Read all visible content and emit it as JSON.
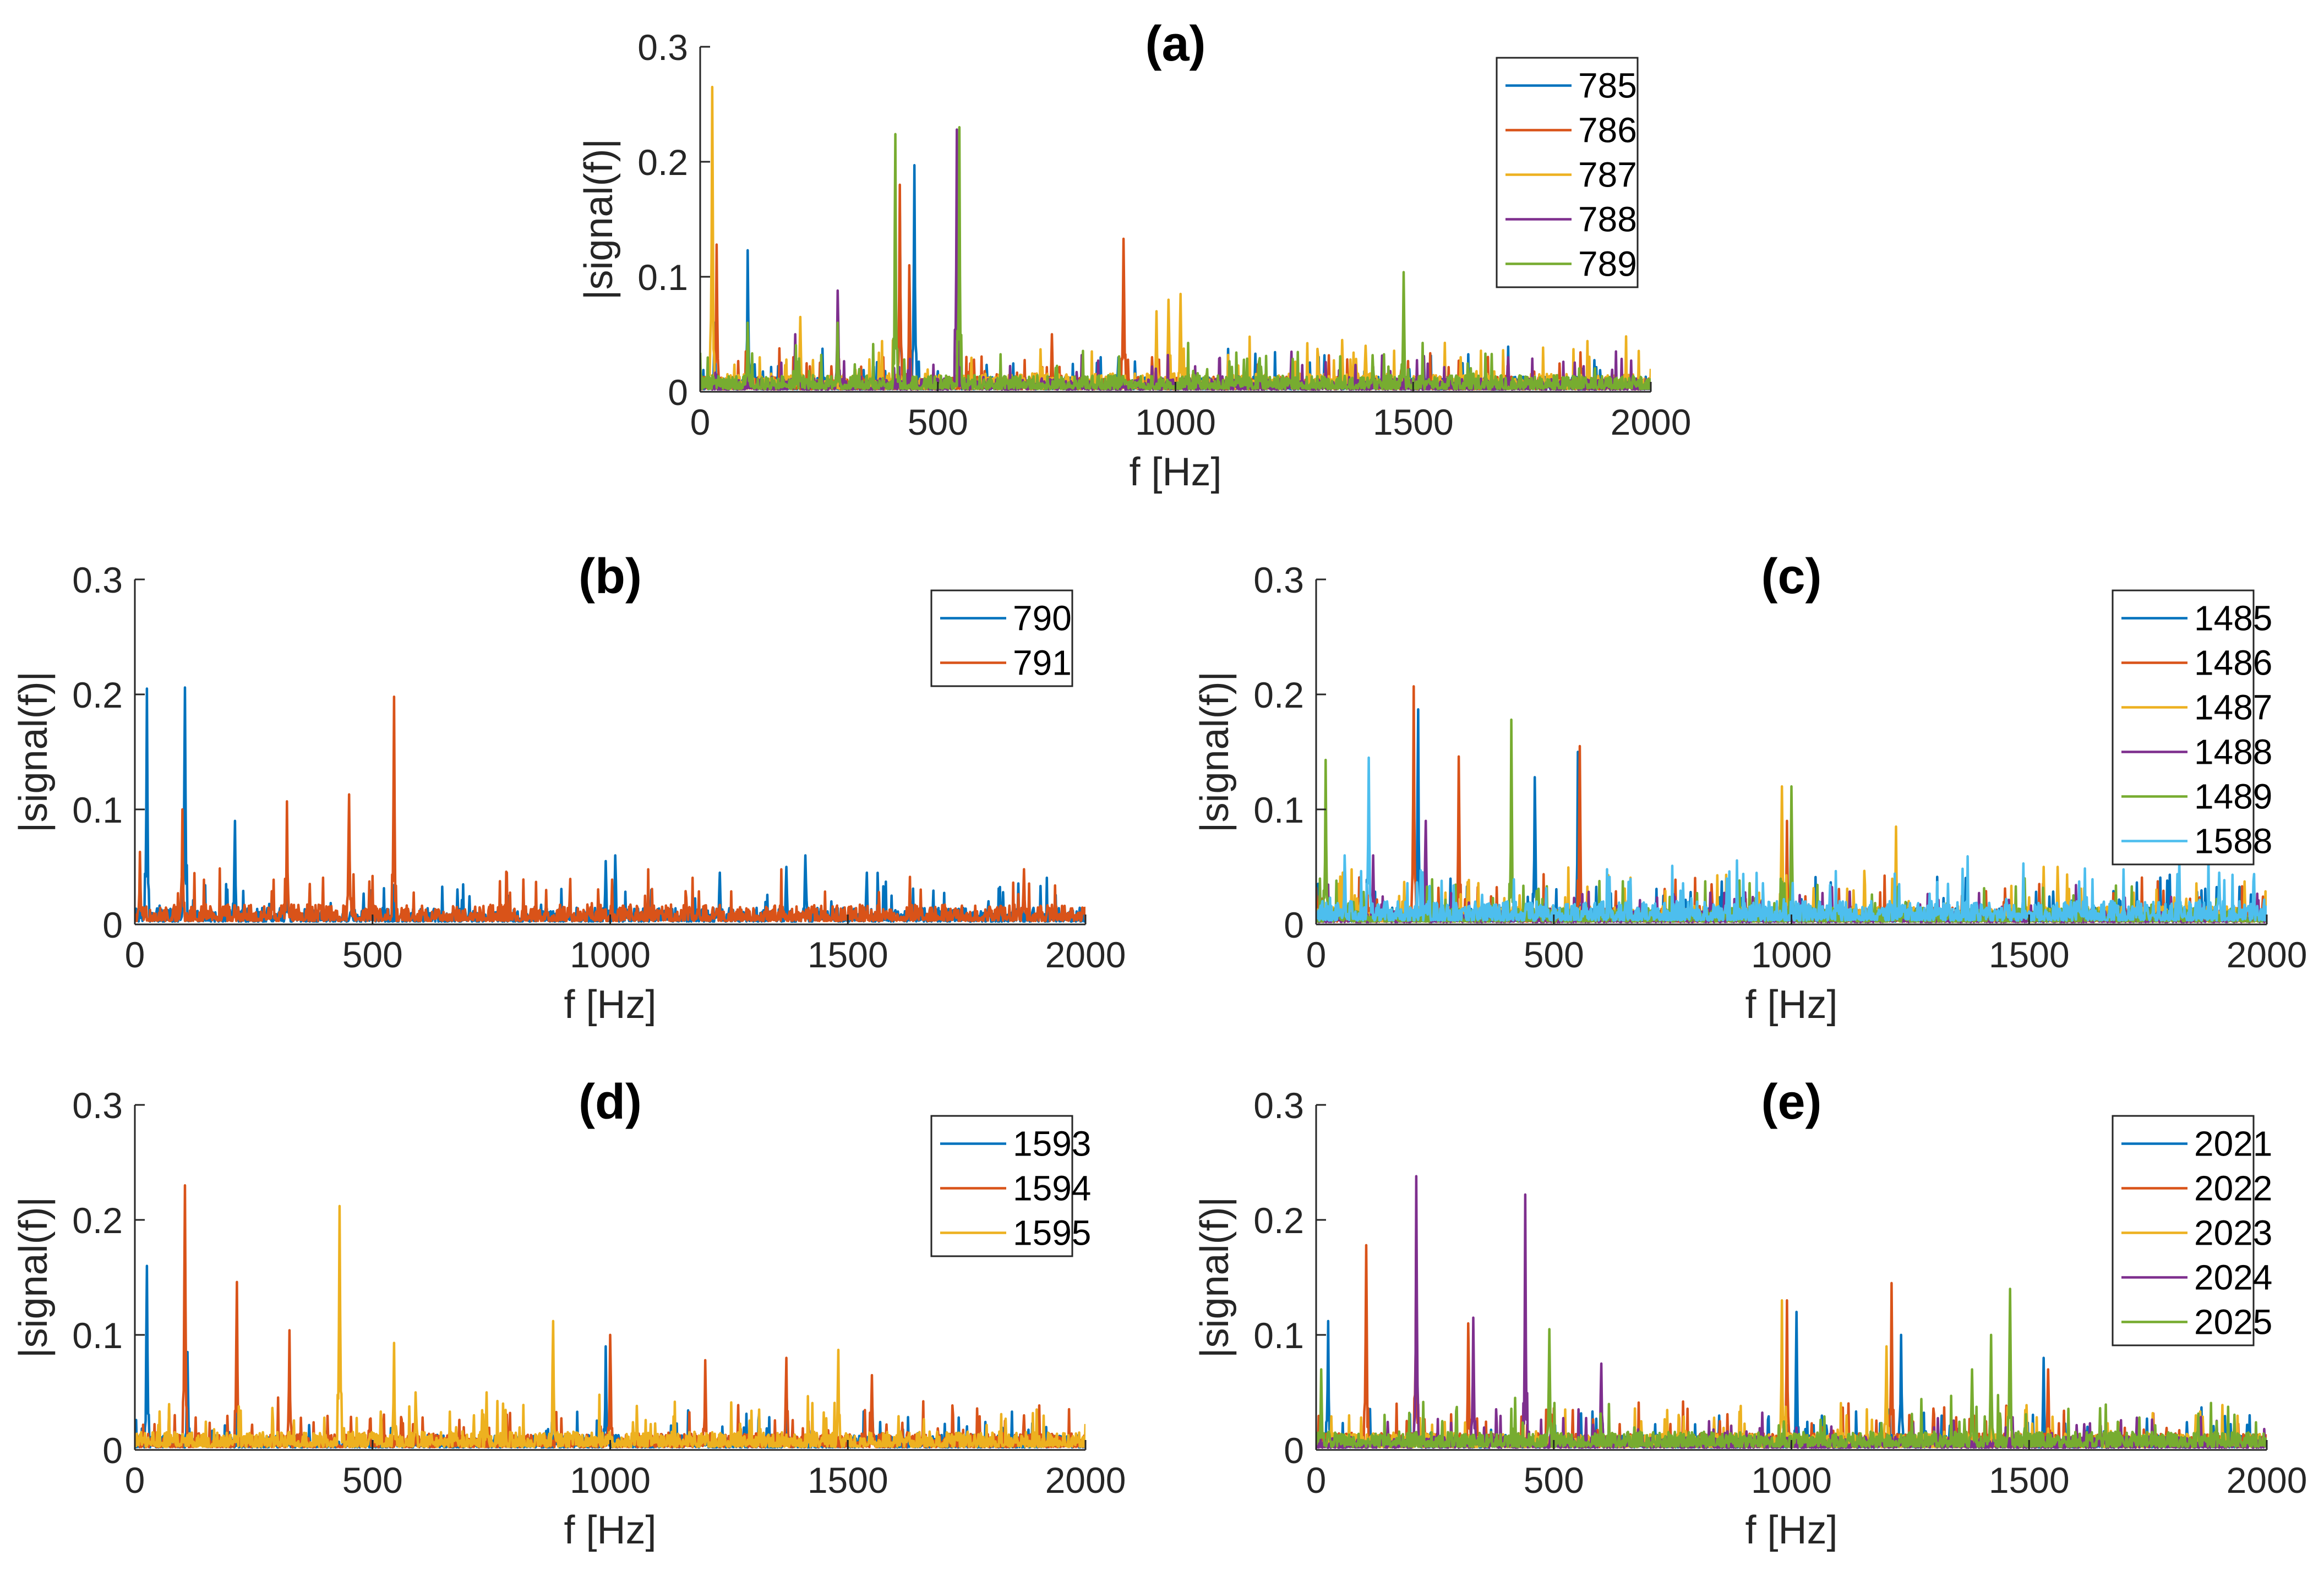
{
  "chart_data": [
    {
      "id": "a",
      "type": "line",
      "title": "(a)",
      "xlabel": "f [Hz]",
      "ylabel": "|signal(f)|",
      "xlim": [
        0,
        2000
      ],
      "ylim": [
        0,
        0.3
      ],
      "xticks": [
        "0",
        "500",
        "1000",
        "1500",
        "2000"
      ],
      "yticks": [
        "0",
        "0.1",
        "0.2",
        "0.3"
      ],
      "legend_position": "top-right",
      "series": [
        {
          "name": "785",
          "color": "#0072BD",
          "noise": 0.009,
          "peaks": [
            [
              100,
              0.123
            ],
            [
              450,
              0.197
            ],
            [
              420,
              0.16
            ],
            [
              30,
              0.06
            ],
            [
              880,
              0.03
            ]
          ]
        },
        {
          "name": "786",
          "color": "#D95319",
          "noise": 0.009,
          "peaks": [
            [
              35,
              0.128
            ],
            [
              420,
              0.18
            ],
            [
              440,
              0.11
            ],
            [
              890,
              0.133
            ],
            [
              740,
              0.05
            ],
            [
              950,
              0.03
            ]
          ]
        },
        {
          "name": "787",
          "color": "#EDB120",
          "noise": 0.011,
          "peaks": [
            [
              25,
              0.265
            ],
            [
              210,
              0.065
            ],
            [
              960,
              0.07
            ],
            [
              985,
              0.08
            ],
            [
              1010,
              0.085
            ],
            [
              1350,
              0.045
            ],
            [
              1400,
              0.04
            ],
            [
              1600,
              0.03
            ]
          ]
        },
        {
          "name": "788",
          "color": "#7E2F8E",
          "noise": 0.008,
          "peaks": [
            [
              290,
              0.088
            ],
            [
              540,
              0.228
            ],
            [
              200,
              0.05
            ],
            [
              1700,
              0.03
            ]
          ]
        },
        {
          "name": "789",
          "color": "#77AC30",
          "noise": 0.01,
          "peaks": [
            [
              410,
              0.224
            ],
            [
              545,
              0.23
            ],
            [
              1480,
              0.104
            ],
            [
              100,
              0.06
            ],
            [
              290,
              0.06
            ]
          ]
        }
      ]
    },
    {
      "id": "b",
      "type": "line",
      "title": "(b)",
      "xlabel": "f [Hz]",
      "ylabel": "|signal(f)|",
      "xlim": [
        0,
        2000
      ],
      "ylim": [
        0,
        0.3
      ],
      "xticks": [
        "0",
        "500",
        "1000",
        "1500",
        "2000"
      ],
      "yticks": [
        "0",
        "0.1",
        "0.2",
        "0.3"
      ],
      "legend_position": "top-right",
      "series": [
        {
          "name": "790",
          "color": "#0072BD",
          "noise": 0.01,
          "peaks": [
            [
              25,
              0.205
            ],
            [
              105,
              0.206
            ],
            [
              210,
              0.09
            ],
            [
              320,
              0.07
            ],
            [
              990,
              0.055
            ],
            [
              1010,
              0.06
            ],
            [
              1230,
              0.045
            ],
            [
              1370,
              0.05
            ],
            [
              1410,
              0.06
            ],
            [
              1540,
              0.045
            ]
          ]
        },
        {
          "name": "791",
          "color": "#D95319",
          "noise": 0.012,
          "peaks": [
            [
              10,
              0.063
            ],
            [
              100,
              0.1
            ],
            [
              320,
              0.107
            ],
            [
              450,
              0.113
            ],
            [
              545,
              0.198
            ],
            [
              1870,
              0.048
            ]
          ]
        }
      ]
    },
    {
      "id": "c",
      "type": "line",
      "title": "(c)",
      "xlabel": "f [Hz]",
      "ylabel": "|signal(f)|",
      "xlim": [
        0,
        2000
      ],
      "ylim": [
        0,
        0.3
      ],
      "xticks": [
        "0",
        "500",
        "1000",
        "1500",
        "2000"
      ],
      "yticks": [
        "0",
        "0.1",
        "0.2",
        "0.3"
      ],
      "legend_position": "top-right",
      "series": [
        {
          "name": "1485",
          "color": "#0072BD",
          "noise": 0.01,
          "peaks": [
            [
              215,
              0.187
            ],
            [
              460,
              0.128
            ],
            [
              550,
              0.15
            ],
            [
              1000,
              0.1
            ]
          ]
        },
        {
          "name": "1486",
          "color": "#D95319",
          "noise": 0.01,
          "peaks": [
            [
              205,
              0.207
            ],
            [
              300,
              0.146
            ],
            [
              555,
              0.155
            ],
            [
              990,
              0.09
            ]
          ]
        },
        {
          "name": "1487",
          "color": "#EDB120",
          "noise": 0.011,
          "peaks": [
            [
              980,
              0.12
            ],
            [
              1220,
              0.085
            ],
            [
              1530,
              0.05
            ],
            [
              1560,
              0.05
            ]
          ]
        },
        {
          "name": "1488",
          "color": "#7E2F8E",
          "noise": 0.008,
          "peaks": [
            [
              230,
              0.09
            ],
            [
              120,
              0.06
            ]
          ]
        },
        {
          "name": "1489",
          "color": "#77AC30",
          "noise": 0.01,
          "peaks": [
            [
              20,
              0.143
            ],
            [
              410,
              0.178
            ],
            [
              1000,
              0.12
            ],
            [
              1490,
              0.04
            ]
          ]
        },
        {
          "name": "1588",
          "color": "#4DBEEE",
          "noise": 0.014,
          "peaks": [
            [
              110,
              0.145
            ],
            [
              1900,
              0.045
            ],
            [
              60,
              0.06
            ]
          ]
        }
      ]
    },
    {
      "id": "d",
      "type": "line",
      "title": "(d)",
      "xlabel": "f [Hz]",
      "ylabel": "|signal(f)|",
      "xlim": [
        0,
        2000
      ],
      "ylim": [
        0,
        0.3
      ],
      "xticks": [
        "0",
        "500",
        "1000",
        "1500",
        "2000"
      ],
      "yticks": [
        "0",
        "0.1",
        "0.2",
        "0.3"
      ],
      "legend_position": "top-right",
      "series": [
        {
          "name": "1593",
          "color": "#0072BD",
          "noise": 0.009,
          "peaks": [
            [
              25,
              0.16
            ],
            [
              110,
              0.085
            ],
            [
              990,
              0.09
            ],
            [
              1370,
              0.06
            ],
            [
              1550,
              0.05
            ]
          ]
        },
        {
          "name": "1594",
          "color": "#D95319",
          "noise": 0.01,
          "peaks": [
            [
              105,
              0.23
            ],
            [
              215,
              0.146
            ],
            [
              325,
              0.104
            ],
            [
              1000,
              0.1
            ],
            [
              1200,
              0.078
            ],
            [
              1370,
              0.08
            ],
            [
              1550,
              0.065
            ],
            [
              1870,
              0.03
            ]
          ]
        },
        {
          "name": "1595",
          "color": "#EDB120",
          "noise": 0.011,
          "peaks": [
            [
              430,
              0.212
            ],
            [
              545,
              0.093
            ],
            [
              880,
              0.112
            ],
            [
              1480,
              0.087
            ],
            [
              740,
              0.05
            ],
            [
              590,
              0.05
            ]
          ]
        }
      ]
    },
    {
      "id": "e",
      "type": "line",
      "title": "(e)",
      "xlabel": "f [Hz]",
      "ylabel": "|signal(f)|",
      "xlim": [
        0,
        2000
      ],
      "ylim": [
        0,
        0.3
      ],
      "xticks": [
        "0",
        "500",
        "1000",
        "1500",
        "2000"
      ],
      "yticks": [
        "0",
        "0.1",
        "0.2",
        "0.3"
      ],
      "legend_position": "top-right",
      "series": [
        {
          "name": "2021",
          "color": "#0072BD",
          "noise": 0.009,
          "peaks": [
            [
              25,
              0.112
            ],
            [
              1010,
              0.12
            ],
            [
              1230,
              0.1
            ],
            [
              1530,
              0.08
            ]
          ]
        },
        {
          "name": "2022",
          "color": "#D95319",
          "noise": 0.01,
          "peaks": [
            [
              105,
              0.178
            ],
            [
              210,
              0.21
            ],
            [
              320,
              0.11
            ],
            [
              990,
              0.13
            ],
            [
              1210,
              0.145
            ],
            [
              1540,
              0.07
            ]
          ]
        },
        {
          "name": "2023",
          "color": "#EDB120",
          "noise": 0.01,
          "peaks": [
            [
              980,
              0.13
            ],
            [
              1200,
              0.09
            ],
            [
              1850,
              0.03
            ]
          ]
        },
        {
          "name": "2024",
          "color": "#7E2F8E",
          "noise": 0.008,
          "peaks": [
            [
              210,
              0.238
            ],
            [
              440,
              0.222
            ],
            [
              330,
              0.115
            ],
            [
              600,
              0.075
            ]
          ]
        },
        {
          "name": "2025",
          "color": "#77AC30",
          "noise": 0.011,
          "peaks": [
            [
              10,
              0.07
            ],
            [
              490,
              0.105
            ],
            [
              1420,
              0.1
            ],
            [
              1460,
              0.14
            ],
            [
              1380,
              0.07
            ]
          ]
        }
      ]
    }
  ]
}
